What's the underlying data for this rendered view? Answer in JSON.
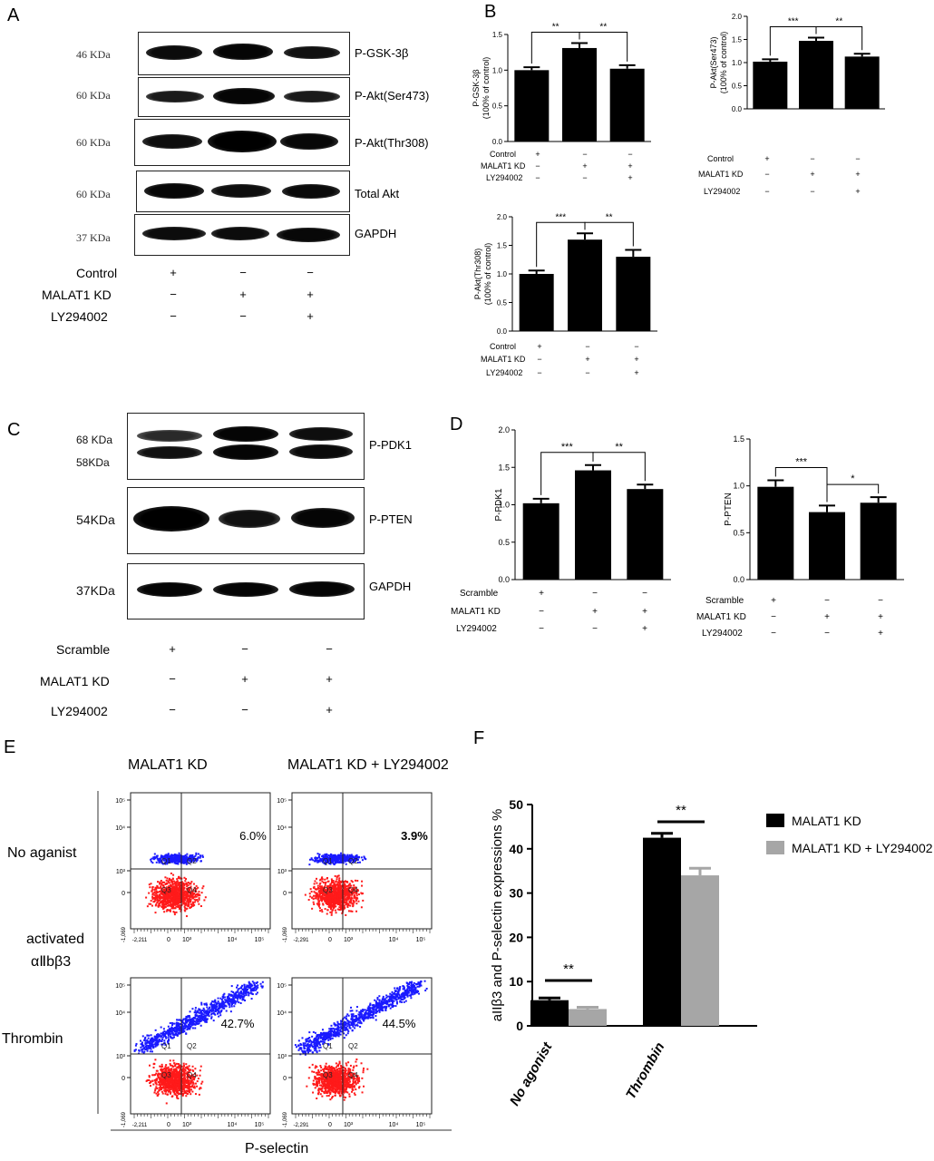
{
  "panels": {
    "a": "A",
    "b": "B",
    "c": "C",
    "d": "D",
    "e": "E",
    "f": "F"
  },
  "panelA": {
    "blots": [
      {
        "kda": "46 KDa",
        "label": "P-GSK-3β"
      },
      {
        "kda": "60 KDa",
        "label": "P-Akt(Ser473)"
      },
      {
        "kda": "60 KDa",
        "label": "P-Akt(Thr308)"
      },
      {
        "kda": "60 KDa",
        "label": "Total Akt"
      },
      {
        "kda": "37 KDa",
        "label": "GAPDH"
      }
    ],
    "rows": [
      {
        "label": "Control",
        "signs": [
          "+",
          "−",
          "−"
        ]
      },
      {
        "label": "MALAT1 KD",
        "signs": [
          "−",
          "+",
          "+"
        ]
      },
      {
        "label": "LY294002",
        "signs": [
          "−",
          "−",
          "+"
        ]
      }
    ]
  },
  "panelC": {
    "blots": [
      {
        "kdas": [
          "68 KDa",
          "58KDa"
        ],
        "label": "P-PDK1"
      },
      {
        "kdas": [
          "54KDa"
        ],
        "label": "P-PTEN"
      },
      {
        "kdas": [
          "37KDa"
        ],
        "label": "GAPDH"
      }
    ],
    "rows": [
      {
        "label": "Scramble",
        "signs": [
          "+",
          "−",
          "−"
        ]
      },
      {
        "label": "MALAT1 KD",
        "signs": [
          "−",
          "+",
          "+"
        ]
      },
      {
        "label": "LY294002",
        "signs": [
          "−",
          "−",
          "+"
        ]
      }
    ]
  },
  "panelE": {
    "col_titles": [
      "MALAT1 KD",
      "MALAT1 KD + LY294002"
    ],
    "row_labels": [
      "No aganist",
      "activated",
      "αⅡbβ3",
      "Thrombin"
    ],
    "percents": [
      "6.0%",
      "3.9%",
      "42.7%",
      "44.5%"
    ],
    "xlabel": "P-selectin",
    "quadrants": [
      "Q1",
      "Q2",
      "Q3",
      "Q4"
    ],
    "yticks": [
      "10⁵",
      "10⁴",
      "10³",
      "0"
    ],
    "xticks": [
      "0",
      "10³",
      "10⁴",
      "10⁵"
    ],
    "neg_ticks_top": [
      "-1,069",
      "-2,211",
      "-2,291"
    ],
    "neg_ticks_bottom": [
      "-1,069",
      "-2,211",
      "-2,291"
    ],
    "colors": {
      "upper": "#1a1aff",
      "lower": "#ff1a1a"
    }
  },
  "chart_data": [
    {
      "id": "B1",
      "type": "bar",
      "ylabel": "P-GSK-3β\n(100% of control)",
      "ylim": [
        0,
        1.5
      ],
      "yticks": [
        0,
        0.5,
        1.0,
        1.5
      ],
      "values": [
        1.0,
        1.31,
        1.02
      ],
      "errors": [
        0.04,
        0.07,
        0.05
      ],
      "sig": [
        {
          "from": 0,
          "to": 1,
          "label": "**"
        },
        {
          "from": 1,
          "to": 2,
          "label": "**"
        }
      ],
      "rows": [
        {
          "label": "Control",
          "signs": [
            "+",
            "−",
            "−"
          ]
        },
        {
          "label": "MALAT1 KD",
          "signs": [
            "−",
            "+",
            "+"
          ]
        },
        {
          "label": "LY294002",
          "signs": [
            "−",
            "−",
            "+"
          ]
        }
      ]
    },
    {
      "id": "B2",
      "type": "bar",
      "ylabel": "P-Akt(Ser473)\n(100% of control)",
      "ylim": [
        0,
        2.0
      ],
      "yticks": [
        0,
        0.5,
        1.0,
        1.5,
        2.0
      ],
      "values": [
        1.02,
        1.47,
        1.13
      ],
      "errors": [
        0.05,
        0.07,
        0.06
      ],
      "sig": [
        {
          "from": 0,
          "to": 1,
          "label": "***"
        },
        {
          "from": 1,
          "to": 2,
          "label": "**"
        }
      ],
      "rows": [
        {
          "label": "Control",
          "signs": [
            "+",
            "−",
            "−"
          ]
        },
        {
          "label": "MALAT1 KD",
          "signs": [
            "−",
            "+",
            "+"
          ]
        },
        {
          "label": "LY294002",
          "signs": [
            "−",
            "−",
            "+"
          ]
        }
      ]
    },
    {
      "id": "B3",
      "type": "bar",
      "ylabel": "P-Akt(Thr308)\n(100% of control)",
      "ylim": [
        0,
        2.0
      ],
      "yticks": [
        0,
        0.5,
        1.0,
        1.5,
        2.0
      ],
      "values": [
        1.0,
        1.6,
        1.3
      ],
      "errors": [
        0.06,
        0.11,
        0.12
      ],
      "sig": [
        {
          "from": 0,
          "to": 1,
          "label": "***"
        },
        {
          "from": 1,
          "to": 2,
          "label": "**"
        }
      ],
      "rows": [
        {
          "label": "Control",
          "signs": [
            "+",
            "−",
            "−"
          ]
        },
        {
          "label": "MALAT1 KD",
          "signs": [
            "−",
            "+",
            "+"
          ]
        },
        {
          "label": "LY294002",
          "signs": [
            "−",
            "−",
            "+"
          ]
        }
      ]
    },
    {
      "id": "D1",
      "type": "bar",
      "ylabel": "P-PDK1",
      "ylim": [
        0,
        2.0
      ],
      "yticks": [
        0,
        0.5,
        1.0,
        1.5,
        2.0
      ],
      "values": [
        1.02,
        1.46,
        1.21
      ],
      "errors": [
        0.06,
        0.07,
        0.06
      ],
      "sig": [
        {
          "from": 0,
          "to": 1,
          "label": "***"
        },
        {
          "from": 1,
          "to": 2,
          "label": "**"
        }
      ],
      "rows": [
        {
          "label": "Scramble",
          "signs": [
            "+",
            "−",
            "−"
          ]
        },
        {
          "label": "MALAT1 KD",
          "signs": [
            "−",
            "+",
            "+"
          ]
        },
        {
          "label": "LY294002",
          "signs": [
            "−",
            "−",
            "+"
          ]
        }
      ]
    },
    {
      "id": "D2",
      "type": "bar",
      "ylabel": "P-PTEN",
      "ylim": [
        0,
        1.5
      ],
      "yticks": [
        0,
        0.5,
        1.0,
        1.5
      ],
      "values": [
        0.99,
        0.72,
        0.82
      ],
      "errors": [
        0.07,
        0.07,
        0.06
      ],
      "sig": [
        {
          "from": 0,
          "to": 1,
          "label": "***"
        },
        {
          "from": 1,
          "to": 2,
          "label": "*"
        }
      ],
      "rows": [
        {
          "label": "Scramble",
          "signs": [
            "+",
            "−",
            "−"
          ]
        },
        {
          "label": "MALAT1 KD",
          "signs": [
            "−",
            "+",
            "+"
          ]
        },
        {
          "label": "LY294002",
          "signs": [
            "−",
            "−",
            "+"
          ]
        }
      ]
    },
    {
      "id": "F",
      "type": "bar",
      "ylabel": "aIIβ3 and P-selectin expressions %",
      "ylim": [
        0,
        50
      ],
      "yticks": [
        0,
        10,
        20,
        30,
        40,
        50
      ],
      "categories": [
        "No agonist",
        "Thrombin"
      ],
      "series": [
        {
          "name": "MALAT1 KD",
          "color": "#000000",
          "values": [
            5.8,
            42.5
          ],
          "errors": [
            0.5,
            1.0
          ]
        },
        {
          "name": "MALAT1 KD + LY294002",
          "color": "#a6a6a6",
          "values": [
            3.8,
            34.0
          ],
          "errors": [
            0.4,
            1.6
          ]
        }
      ],
      "sig": [
        "**",
        "**"
      ],
      "legend": "right"
    }
  ]
}
